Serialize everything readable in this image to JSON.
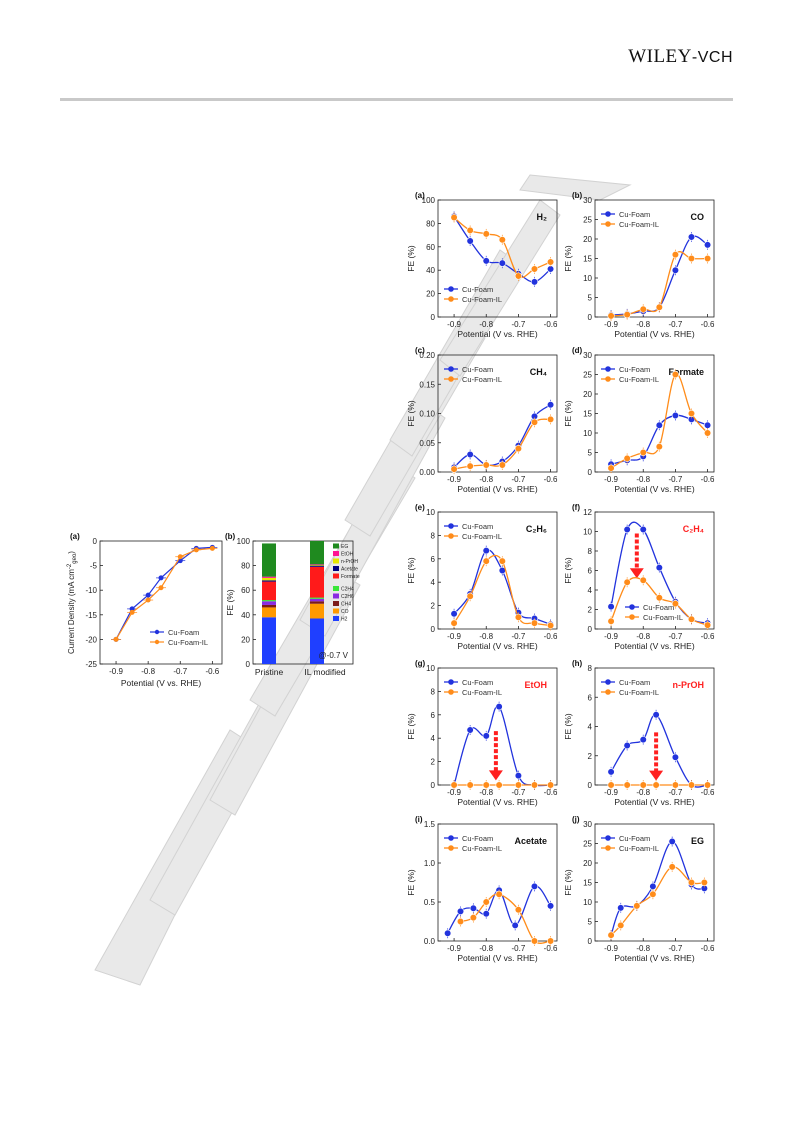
{
  "header": {
    "logo_main": "WILEY",
    "logo_suffix": "-VCH"
  },
  "figure_left": {
    "a": {
      "label": "(a)",
      "ylabel": "Current Density (mA cm",
      "ylabel_sup": "-2",
      "ylabel_sub": "geo",
      "ylabel_end": ")",
      "xlabel": "Potential (V vs. RHE)",
      "legend": [
        "Cu-Foam",
        "Cu-Foam-IL"
      ]
    },
    "b": {
      "label": "(b)",
      "ylabel": "FE (%)",
      "categories": [
        "Pristine",
        "IL modified"
      ],
      "annotation": "@-0.7 V",
      "legend": [
        "EG",
        "EtOH",
        "n-PrOH",
        "Acetate",
        "Formate",
        "C2H4",
        "C2H6",
        "CH4",
        "CO",
        "H2"
      ]
    }
  },
  "chart_data": [
    {
      "id": "left-a",
      "type": "line",
      "panel": "(a)",
      "xlabel": "Potential (V vs. RHE)",
      "xlim": [
        -0.95,
        -0.57
      ],
      "ylim": [
        -25,
        0
      ],
      "xticks": [
        -0.9,
        -0.8,
        -0.7,
        -0.6
      ],
      "yticks": [
        -25,
        -20,
        -15,
        -10,
        -5,
        0
      ],
      "series": [
        {
          "name": "Cu-Foam",
          "color": "#2233dd",
          "x": [
            -0.9,
            -0.85,
            -0.8,
            -0.76,
            -0.7,
            -0.65,
            -0.6
          ],
          "y": [
            -20,
            -13.8,
            -11,
            -7.5,
            -4,
            -1.5,
            -1.3
          ]
        },
        {
          "name": "Cu-Foam-IL",
          "color": "#ff8c1a",
          "x": [
            -0.9,
            -0.85,
            -0.8,
            -0.76,
            -0.7,
            -0.65,
            -0.6
          ],
          "y": [
            -20,
            -14.5,
            -12,
            -9.5,
            -3.2,
            -1.8,
            -1.5
          ]
        }
      ]
    },
    {
      "id": "left-b",
      "type": "bar",
      "panel": "(b)",
      "stacked": true,
      "categories": [
        "Pristine",
        "IL modified"
      ],
      "ylim": [
        0,
        100
      ],
      "yticks": [
        0,
        20,
        40,
        60,
        80,
        100
      ],
      "series": [
        {
          "name": "H2",
          "color": "#1f3fff",
          "values": [
            38,
            37
          ]
        },
        {
          "name": "CO",
          "color": "#ff9900",
          "values": [
            8,
            12
          ]
        },
        {
          "name": "CH4",
          "color": "#7b1a1a",
          "values": [
            2,
            2
          ]
        },
        {
          "name": "C2H6",
          "color": "#8a2be2",
          "values": [
            3,
            2
          ]
        },
        {
          "name": "C2H4",
          "color": "#39e639",
          "values": [
            1,
            1
          ]
        },
        {
          "name": "Formate",
          "color": "#ff1a1a",
          "values": [
            15,
            25
          ]
        },
        {
          "name": "Acetate",
          "color": "#000080",
          "values": [
            1,
            1
          ]
        },
        {
          "name": "n-PrOH",
          "color": "#e6e600",
          "values": [
            2,
            0.5
          ]
        },
        {
          "name": "EtOH",
          "color": "#ff1493",
          "values": [
            1,
            0.5
          ]
        },
        {
          "name": "EG",
          "color": "#1f8a1f",
          "values": [
            27,
            19
          ]
        }
      ]
    },
    {
      "id": "a",
      "type": "line",
      "panel": "(a)",
      "title": "H₂",
      "title_color": "#111",
      "ylim": [
        0,
        100
      ],
      "yticks": [
        0,
        20,
        40,
        60,
        80,
        100
      ],
      "legend_pos": "bottom-left",
      "xlabel": "Potential (V vs. RHE)",
      "ylabel": "FE (%)",
      "series": [
        {
          "name": "Cu-Foam",
          "x": [
            -0.9,
            -0.85,
            -0.8,
            -0.75,
            -0.7,
            -0.65,
            -0.6
          ],
          "y": [
            86,
            65,
            48,
            46,
            37,
            30,
            41
          ]
        },
        {
          "name": "Cu-Foam-IL",
          "x": [
            -0.9,
            -0.85,
            -0.8,
            -0.75,
            -0.7,
            -0.65,
            -0.6
          ],
          "y": [
            85,
            74,
            71,
            66,
            35,
            41,
            47
          ]
        }
      ]
    },
    {
      "id": "b",
      "type": "line",
      "panel": "(b)",
      "title": "CO",
      "title_color": "#111",
      "ylim": [
        0,
        30
      ],
      "yticks": [
        0,
        5,
        10,
        15,
        20,
        25,
        30
      ],
      "legend_pos": "top-left",
      "xlabel": "Potential (V vs. RHE)",
      "ylabel": "FE (%)",
      "series": [
        {
          "name": "Cu-Foam",
          "x": [
            -0.9,
            -0.85,
            -0.8,
            -0.75,
            -0.7,
            -0.65,
            -0.6
          ],
          "y": [
            0.5,
            0.8,
            1.5,
            2.5,
            12,
            20.5,
            18.5
          ]
        },
        {
          "name": "Cu-Foam-IL",
          "x": [
            -0.9,
            -0.85,
            -0.8,
            -0.75,
            -0.7,
            -0.65,
            -0.6
          ],
          "y": [
            0.3,
            0.6,
            2,
            2.5,
            16,
            15,
            15
          ]
        }
      ]
    },
    {
      "id": "c",
      "type": "line",
      "panel": "(c)",
      "title": "CH₄",
      "title_color": "#111",
      "ylim": [
        0,
        0.2
      ],
      "yticks": [
        0.0,
        0.05,
        0.1,
        0.15,
        0.2
      ],
      "ytick_labels": [
        "0.00",
        "0.05",
        "0.10",
        "0.15",
        "0.20"
      ],
      "legend_pos": "top-left",
      "xlabel": "Potential (V vs. RHE)",
      "ylabel": "FE (%)",
      "series": [
        {
          "name": "Cu-Foam",
          "x": [
            -0.9,
            -0.85,
            -0.8,
            -0.75,
            -0.7,
            -0.65,
            -0.6
          ],
          "y": [
            0.008,
            0.03,
            0.012,
            0.018,
            0.045,
            0.095,
            0.115
          ]
        },
        {
          "name": "Cu-Foam-IL",
          "x": [
            -0.9,
            -0.85,
            -0.8,
            -0.75,
            -0.7,
            -0.65,
            -0.6
          ],
          "y": [
            0.005,
            0.01,
            0.012,
            0.012,
            0.04,
            0.085,
            0.09
          ]
        }
      ]
    },
    {
      "id": "d",
      "type": "line",
      "panel": "(d)",
      "title": "Formate",
      "title_color": "#111",
      "ylim": [
        0,
        30
      ],
      "yticks": [
        0,
        5,
        10,
        15,
        20,
        25,
        30
      ],
      "legend_pos": "top-left",
      "xlabel": "Potential (V vs. RHE)",
      "ylabel": "FE (%)",
      "series": [
        {
          "name": "Cu-Foam",
          "x": [
            -0.9,
            -0.85,
            -0.8,
            -0.75,
            -0.7,
            -0.65,
            -0.6
          ],
          "y": [
            2,
            3,
            4,
            12,
            14.5,
            13.5,
            12
          ]
        },
        {
          "name": "Cu-Foam-IL",
          "x": [
            -0.9,
            -0.85,
            -0.8,
            -0.75,
            -0.7,
            -0.65,
            -0.6
          ],
          "y": [
            1,
            3.5,
            5,
            6.5,
            25,
            15,
            10
          ]
        }
      ]
    },
    {
      "id": "e",
      "type": "line",
      "panel": "(e)",
      "title": "C₂H₆",
      "title_color": "#111",
      "ylim": [
        0,
        10
      ],
      "yticks": [
        0,
        2,
        4,
        6,
        8,
        10
      ],
      "legend_pos": "top-left",
      "xlabel": "Potential (V vs. RHE)",
      "ylabel": "FE (%)",
      "series": [
        {
          "name": "Cu-Foam",
          "x": [
            -0.9,
            -0.85,
            -0.8,
            -0.75,
            -0.7,
            -0.65,
            -0.6
          ],
          "y": [
            1.3,
            3,
            6.7,
            5,
            1.4,
            0.9,
            0.4
          ]
        },
        {
          "name": "Cu-Foam-IL",
          "x": [
            -0.9,
            -0.85,
            -0.8,
            -0.75,
            -0.7,
            -0.65,
            -0.6
          ],
          "y": [
            0.5,
            2.8,
            5.8,
            5.8,
            1.0,
            0.5,
            0.3
          ]
        }
      ]
    },
    {
      "id": "f",
      "type": "line",
      "panel": "(f)",
      "title": "C₂H₄",
      "title_color": "#ff2020",
      "ylim": [
        0,
        12
      ],
      "yticks": [
        0,
        2,
        4,
        6,
        8,
        10,
        12
      ],
      "legend_pos": "bottom-right",
      "arrow_x": -0.82,
      "arrow_from": 9.8,
      "arrow_to": 5.2,
      "xlabel": "Potential (V vs. RHE)",
      "ylabel": "FE (%)",
      "series": [
        {
          "name": "Cu-Foam",
          "x": [
            -0.9,
            -0.85,
            -0.8,
            -0.75,
            -0.7,
            -0.65,
            -0.6
          ],
          "y": [
            2.3,
            10.2,
            10.2,
            6.3,
            2.8,
            1.0,
            0.6
          ]
        },
        {
          "name": "Cu-Foam-IL",
          "x": [
            -0.9,
            -0.85,
            -0.8,
            -0.75,
            -0.7,
            -0.65,
            -0.6
          ],
          "y": [
            0.8,
            4.8,
            5.0,
            3.2,
            2.6,
            1.0,
            0.4
          ]
        }
      ]
    },
    {
      "id": "g",
      "type": "line",
      "panel": "(g)",
      "title": "EtOH",
      "title_color": "#ff2020",
      "ylim": [
        0,
        10
      ],
      "yticks": [
        0,
        2,
        4,
        6,
        8,
        10
      ],
      "legend_pos": "top-left",
      "arrow_x": -0.77,
      "arrow_from": 4.6,
      "arrow_to": 0.4,
      "xlabel": "Potential (V vs. RHE)",
      "ylabel": "FE (%)",
      "series": [
        {
          "name": "Cu-Foam",
          "x": [
            -0.9,
            -0.85,
            -0.8,
            -0.76,
            -0.7,
            -0.65,
            -0.6
          ],
          "y": [
            0,
            4.7,
            4.2,
            6.7,
            0.8,
            0,
            0
          ]
        },
        {
          "name": "Cu-Foam-IL",
          "x": [
            -0.9,
            -0.85,
            -0.8,
            -0.76,
            -0.7,
            -0.65,
            -0.6
          ],
          "y": [
            0,
            0,
            0,
            0,
            0,
            0,
            0
          ]
        }
      ]
    },
    {
      "id": "h",
      "type": "line",
      "panel": "(h)",
      "title": "n-PrOH",
      "title_color": "#ff2020",
      "ylim": [
        0,
        8
      ],
      "yticks": [
        0,
        2,
        4,
        6,
        8
      ],
      "legend_pos": "top-left",
      "arrow_x": -0.76,
      "arrow_from": 3.6,
      "arrow_to": 0.3,
      "xlabel": "Potential (V vs. RHE)",
      "ylabel": "FE (%)",
      "series": [
        {
          "name": "Cu-Foam",
          "x": [
            -0.9,
            -0.85,
            -0.8,
            -0.76,
            -0.7,
            -0.65,
            -0.6
          ],
          "y": [
            0.9,
            2.7,
            3.1,
            4.8,
            1.9,
            0,
            0
          ]
        },
        {
          "name": "Cu-Foam-IL",
          "x": [
            -0.9,
            -0.85,
            -0.8,
            -0.76,
            -0.7,
            -0.65,
            -0.6
          ],
          "y": [
            0,
            0,
            0,
            0,
            0,
            0,
            0
          ]
        }
      ]
    },
    {
      "id": "i",
      "type": "line",
      "panel": "(i)",
      "title": "Acetate",
      "title_color": "#111",
      "ylim": [
        0,
        1.5
      ],
      "yticks": [
        0.0,
        0.5,
        1.0,
        1.5
      ],
      "ytick_labels": [
        "0.0",
        "0.5",
        "1.0",
        "1.5"
      ],
      "legend_pos": "top-left",
      "xlabel": "Potential (V vs. RHE)",
      "ylabel": "FE (%)",
      "series": [
        {
          "name": "Cu-Foam",
          "x": [
            -0.92,
            -0.88,
            -0.84,
            -0.8,
            -0.76,
            -0.71,
            -0.65,
            -0.6
          ],
          "y": [
            0.1,
            0.38,
            0.42,
            0.35,
            0.65,
            0.2,
            0.7,
            0.45
          ]
        },
        {
          "name": "Cu-Foam-IL",
          "x": [
            -0.88,
            -0.84,
            -0.8,
            -0.76,
            -0.7,
            -0.65,
            -0.6
          ],
          "y": [
            0.25,
            0.3,
            0.5,
            0.6,
            0.4,
            0,
            0
          ]
        }
      ]
    },
    {
      "id": "j",
      "type": "line",
      "panel": "(j)",
      "title": "EG",
      "title_color": "#111",
      "ylim": [
        0,
        30
      ],
      "yticks": [
        0,
        5,
        10,
        15,
        20,
        25,
        30
      ],
      "legend_pos": "top-left",
      "xlabel": "Potential (V vs. RHE)",
      "ylabel": "FE (%)",
      "series": [
        {
          "name": "Cu-Foam",
          "x": [
            -0.9,
            -0.87,
            -0.82,
            -0.77,
            -0.71,
            -0.65,
            -0.61
          ],
          "y": [
            1.5,
            8.5,
            9,
            14,
            25.5,
            14.5,
            13.5
          ]
        },
        {
          "name": "Cu-Foam-IL",
          "x": [
            -0.9,
            -0.87,
            -0.82,
            -0.77,
            -0.71,
            -0.65,
            -0.61
          ],
          "y": [
            1.5,
            4,
            9,
            12,
            19,
            15,
            15
          ]
        }
      ]
    }
  ],
  "right_common": {
    "xticks": [
      -0.9,
      -0.8,
      -0.7,
      -0.6
    ],
    "xlim": [
      -0.95,
      -0.58
    ],
    "legend": [
      "Cu-Foam",
      "Cu-Foam-IL"
    ],
    "colors": {
      "foam": "#2233dd",
      "il": "#ff8c1a",
      "arrow": "#ff2020"
    }
  }
}
